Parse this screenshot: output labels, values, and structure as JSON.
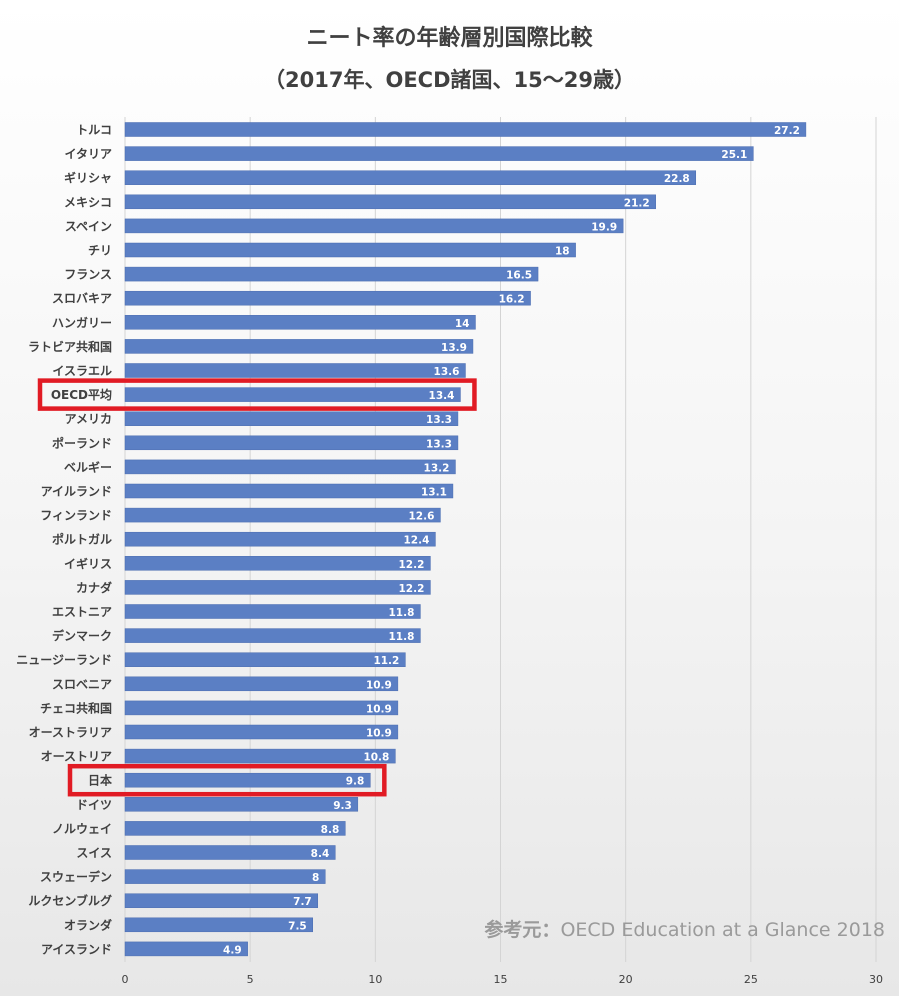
{
  "chart_data": {
    "type": "bar",
    "orientation": "horizontal",
    "title": "ニート率の年齢層別国際比較",
    "subtitle": "（2017年、OECD諸国、15～29歳）",
    "categories": [
      "トルコ",
      "イタリア",
      "ギリシャ",
      "メキシコ",
      "スペイン",
      "チリ",
      "フランス",
      "スロバキア",
      "ハンガリー",
      "ラトビア共和国",
      "イスラエル",
      "OECD平均",
      "アメリカ",
      "ポーランド",
      "ベルギー",
      "アイルランド",
      "フィンランド",
      "ポルトガル",
      "イギリス",
      "カナダ",
      "エストニア",
      "デンマーク",
      "ニュージーランド",
      "スロベニア",
      "チェコ共和国",
      "オーストラリア",
      "オーストリア",
      "日本",
      "ドイツ",
      "ノルウェイ",
      "スイス",
      "スウェーデン",
      "ルクセンブルグ",
      "オランダ",
      "アイスランド"
    ],
    "values": [
      27.2,
      25.1,
      22.8,
      21.2,
      19.9,
      18,
      16.5,
      16.2,
      14,
      13.9,
      13.6,
      13.4,
      13.3,
      13.3,
      13.2,
      13.1,
      12.6,
      12.4,
      12.2,
      12.2,
      11.8,
      11.8,
      11.2,
      10.9,
      10.9,
      10.9,
      10.8,
      9.8,
      9.3,
      8.8,
      8.4,
      8,
      7.7,
      7.5,
      4.9
    ],
    "value_labels": [
      "27.2",
      "25.1",
      "22.8",
      "21.2",
      "19.9",
      "18",
      "16.5",
      "16.2",
      "14",
      "13.9",
      "13.6",
      "13.4",
      "13.3",
      "13.3",
      "13.2",
      "13.1",
      "12.6",
      "12.4",
      "12.2",
      "12.2",
      "11.8",
      "11.8",
      "11.2",
      "10.9",
      "10.9",
      "10.9",
      "10.8",
      "9.8",
      "9.3",
      "8.8",
      "8.4",
      "8",
      "7.7",
      "7.5",
      "4.9"
    ],
    "xlim": [
      0,
      30
    ],
    "x_ticks": [
      "0",
      "5",
      "10",
      "15",
      "20",
      "25",
      "30"
    ],
    "grid": "vertical",
    "highlighted": [
      "OECD平均",
      "日本"
    ],
    "xlabel": "",
    "ylabel": ""
  },
  "source": {
    "label": "参考元：",
    "text": "OECD Education at a Glance 2018"
  },
  "colors": {
    "bar": "#5b7fc4",
    "bar_edge": "#4a6cb0",
    "highlight": "#e11b24",
    "gridline": "#d4d4d4",
    "text": "#404040",
    "bar_label": "#ffffff"
  }
}
